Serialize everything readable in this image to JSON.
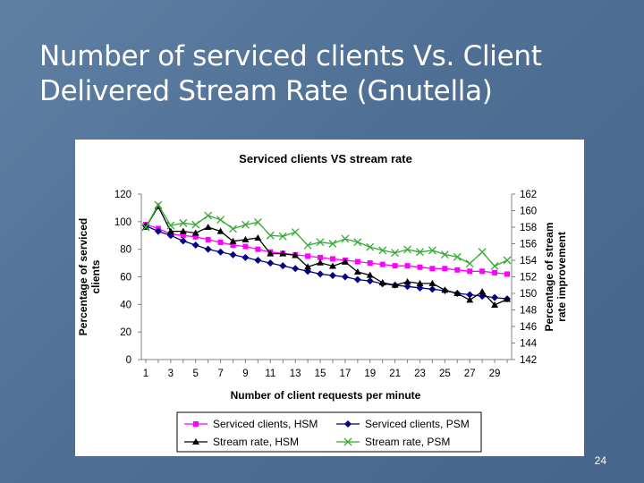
{
  "slide": {
    "title_line1": "Number of serviced clients Vs. Client",
    "title_line2": "Delivered Stream Rate (Gnutella)",
    "page_number": "24"
  },
  "chart_data": {
    "type": "line",
    "title": "Serviced clients VS stream rate",
    "xlabel": "Number of client requests per minute",
    "ylabel_left": [
      "Percentage of serviced",
      "clients"
    ],
    "ylabel_right": [
      "Percentage of stream",
      "rate improvement"
    ],
    "x": [
      1,
      2,
      3,
      4,
      5,
      6,
      7,
      8,
      9,
      10,
      11,
      12,
      13,
      14,
      15,
      16,
      17,
      18,
      19,
      20,
      21,
      22,
      23,
      24,
      25,
      26,
      27,
      28,
      29,
      30
    ],
    "x_tick_labels": [
      "1",
      "3",
      "5",
      "7",
      "9",
      "11",
      "13",
      "15",
      "17",
      "19",
      "21",
      "23",
      "25",
      "27",
      "29"
    ],
    "ylim_left": [
      0,
      120
    ],
    "yticks_left": [
      "0",
      "20",
      "40",
      "60",
      "80",
      "100",
      "120"
    ],
    "ylim_right": [
      142,
      162
    ],
    "yticks_right": [
      "142",
      "144",
      "146",
      "148",
      "150",
      "152",
      "154",
      "156",
      "158",
      "160",
      "162"
    ],
    "grid": false,
    "legend_position": "bottom",
    "series": [
      {
        "name": "Serviced clients, HSM",
        "axis": "left",
        "color": "#ff00ff",
        "marker": "square",
        "values": [
          98,
          95,
          91,
          90,
          89,
          87,
          85,
          83,
          82,
          80,
          78,
          77,
          76,
          75,
          74,
          73,
          72,
          71,
          70,
          69,
          68,
          68,
          67,
          66,
          66,
          65,
          64,
          64,
          63,
          62
        ]
      },
      {
        "name": "Serviced clients, PSM",
        "axis": "left",
        "color": "#000080",
        "marker": "diamond",
        "values": [
          97,
          93,
          90,
          86,
          83,
          80,
          78,
          76,
          74,
          72,
          70,
          68,
          66,
          64,
          62,
          61,
          60,
          58,
          57,
          55,
          54,
          53,
          52,
          51,
          50,
          48,
          47,
          46,
          45,
          44
        ]
      },
      {
        "name": "Stream rate, HSM",
        "axis": "right",
        "color": "#000000",
        "marker": "triangle",
        "values": [
          158.0,
          160.5,
          157.5,
          157.5,
          157.3,
          158.0,
          157.5,
          156.3,
          156.5,
          156.7,
          154.8,
          154.8,
          154.6,
          153.2,
          153.7,
          153.3,
          153.8,
          152.6,
          152.2,
          151.3,
          151.0,
          151.4,
          151.2,
          151.2,
          150.4,
          150.0,
          149.2,
          150.2,
          148.6,
          149.3
        ]
      },
      {
        "name": "Stream rate, PSM",
        "axis": "right",
        "color": "#33aa33",
        "marker": "x",
        "values": [
          158.0,
          160.7,
          158.2,
          158.5,
          158.3,
          159.4,
          158.9,
          157.8,
          158.3,
          158.6,
          157.0,
          156.9,
          157.4,
          155.8,
          156.2,
          156.0,
          156.6,
          156.2,
          155.6,
          155.2,
          154.9,
          155.3,
          155.0,
          155.2,
          154.7,
          154.4,
          153.6,
          155.0,
          153.3,
          154.0
        ]
      }
    ]
  }
}
